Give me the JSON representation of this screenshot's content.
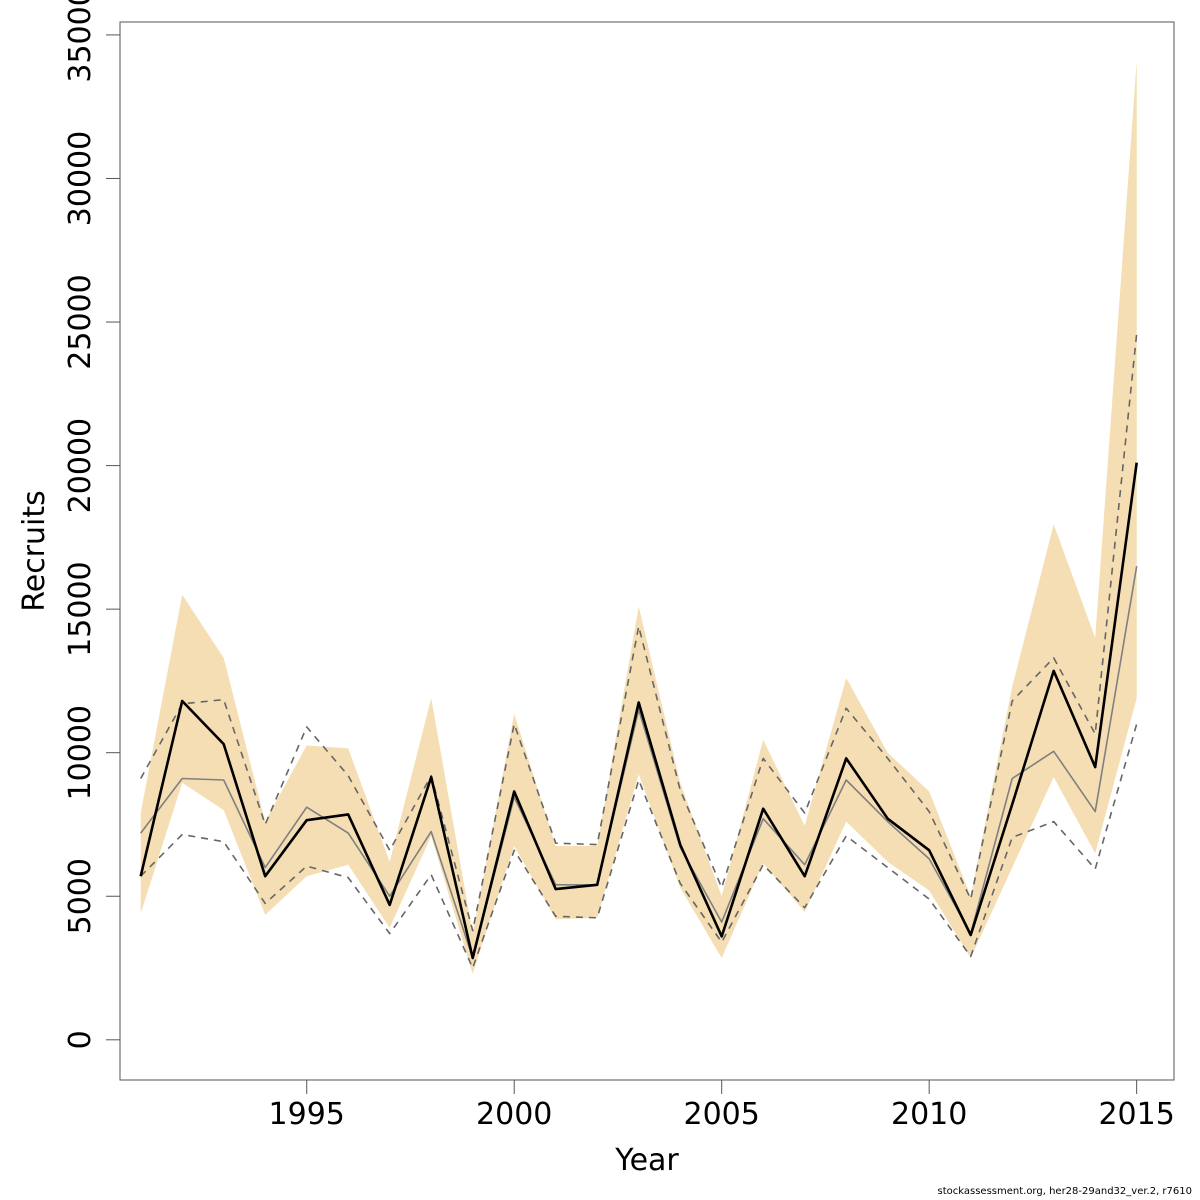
{
  "chart_data": {
    "type": "line",
    "xlabel": "Year",
    "ylabel": "Recruits",
    "xlim": [
      1990.5,
      2015.9
    ],
    "ylim": [
      -1400,
      35450
    ],
    "x_ticks": [
      1995,
      2000,
      2005,
      2010,
      2015
    ],
    "y_ticks": [
      0,
      5000,
      10000,
      15000,
      20000,
      25000,
      30000,
      35000
    ],
    "grid": false,
    "legend": "none",
    "x": [
      1991,
      1992,
      1993,
      1994,
      1995,
      1996,
      1997,
      1998,
      1999,
      2000,
      2001,
      2002,
      2003,
      2004,
      2005,
      2006,
      2007,
      2008,
      2009,
      2010,
      2011,
      2012,
      2013,
      2014,
      2015
    ],
    "series": [
      {
        "role": "confidence-band-lower",
        "color": "#f5deb3",
        "values": [
          4400,
          8950,
          8000,
          4350,
          5700,
          6100,
          3900,
          7100,
          2300,
          6750,
          4200,
          4250,
          9250,
          5300,
          2850,
          6150,
          4450,
          7600,
          6200,
          5200,
          2850,
          6000,
          9150,
          6500,
          11900
        ]
      },
      {
        "role": "confidence-band-upper",
        "color": "#f5deb3",
        "values": [
          7900,
          15500,
          13300,
          7600,
          10250,
          10150,
          6200,
          11900,
          3700,
          11350,
          6750,
          6750,
          15100,
          8950,
          5000,
          10450,
          7450,
          12600,
          10000,
          8650,
          5000,
          12300,
          17950,
          14000,
          34100
        ]
      },
      {
        "role": "estimate",
        "color": "#000000",
        "values": [
          5700,
          11800,
          10300,
          5700,
          7650,
          7850,
          4700,
          9150,
          2850,
          8650,
          5250,
          5400,
          11750,
          6800,
          3600,
          8050,
          5700,
          9800,
          7700,
          6600,
          3650,
          8200,
          12850,
          9500,
          20100
        ]
      },
      {
        "role": "median",
        "color": "#808080",
        "values": [
          7200,
          9100,
          9050,
          6000,
          8100,
          7200,
          5000,
          7250,
          2850,
          8450,
          5400,
          5400,
          11500,
          6700,
          4100,
          7700,
          6100,
          9050,
          7600,
          6300,
          3700,
          9100,
          10050,
          7950,
          16500
        ]
      },
      {
        "role": "dashed-upper",
        "color": "#666666",
        "values": [
          9100,
          11700,
          11850,
          7500,
          10900,
          9200,
          6600,
          9200,
          3800,
          11000,
          6850,
          6800,
          14400,
          8700,
          5300,
          9800,
          7900,
          11550,
          9800,
          7950,
          4900,
          11800,
          13300,
          10650,
          24600
        ]
      },
      {
        "role": "dashed-lower",
        "color": "#666666",
        "values": [
          5700,
          7150,
          6900,
          4750,
          6050,
          5650,
          3700,
          5750,
          2500,
          6600,
          4300,
          4250,
          9050,
          5450,
          3400,
          6100,
          4600,
          7100,
          6000,
          4900,
          2900,
          7050,
          7600,
          5950,
          11000
        ]
      }
    ]
  },
  "footer": "stockassessment.org, her28-29and32_ver.2, r7610"
}
